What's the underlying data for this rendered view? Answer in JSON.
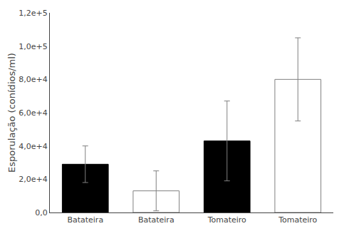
{
  "chart_data": {
    "type": "bar",
    "categories": [
      "Batateira",
      "Batateira",
      "Tomateiro",
      "Tomateiro"
    ],
    "values": [
      29000,
      13000,
      43000,
      80000
    ],
    "errors": [
      11000,
      12000,
      24000,
      25000
    ],
    "colors": [
      "#000000",
      "#ffffff",
      "#000000",
      "#ffffff"
    ],
    "ylabel": "Esporulação (conídios/ml)",
    "ylim": [
      0,
      120000
    ],
    "yticks": [
      {
        "value": 0,
        "label": "0,0"
      },
      {
        "value": 20000,
        "label": "2,0e+4"
      },
      {
        "value": 40000,
        "label": "4,0e+4"
      },
      {
        "value": 60000,
        "label": "6,0e+4"
      },
      {
        "value": 80000,
        "label": "8,0e+4"
      },
      {
        "value": 100000,
        "label": "1,0e+5"
      },
      {
        "value": 120000,
        "label": "1,2e+5"
      }
    ],
    "grid": false
  }
}
